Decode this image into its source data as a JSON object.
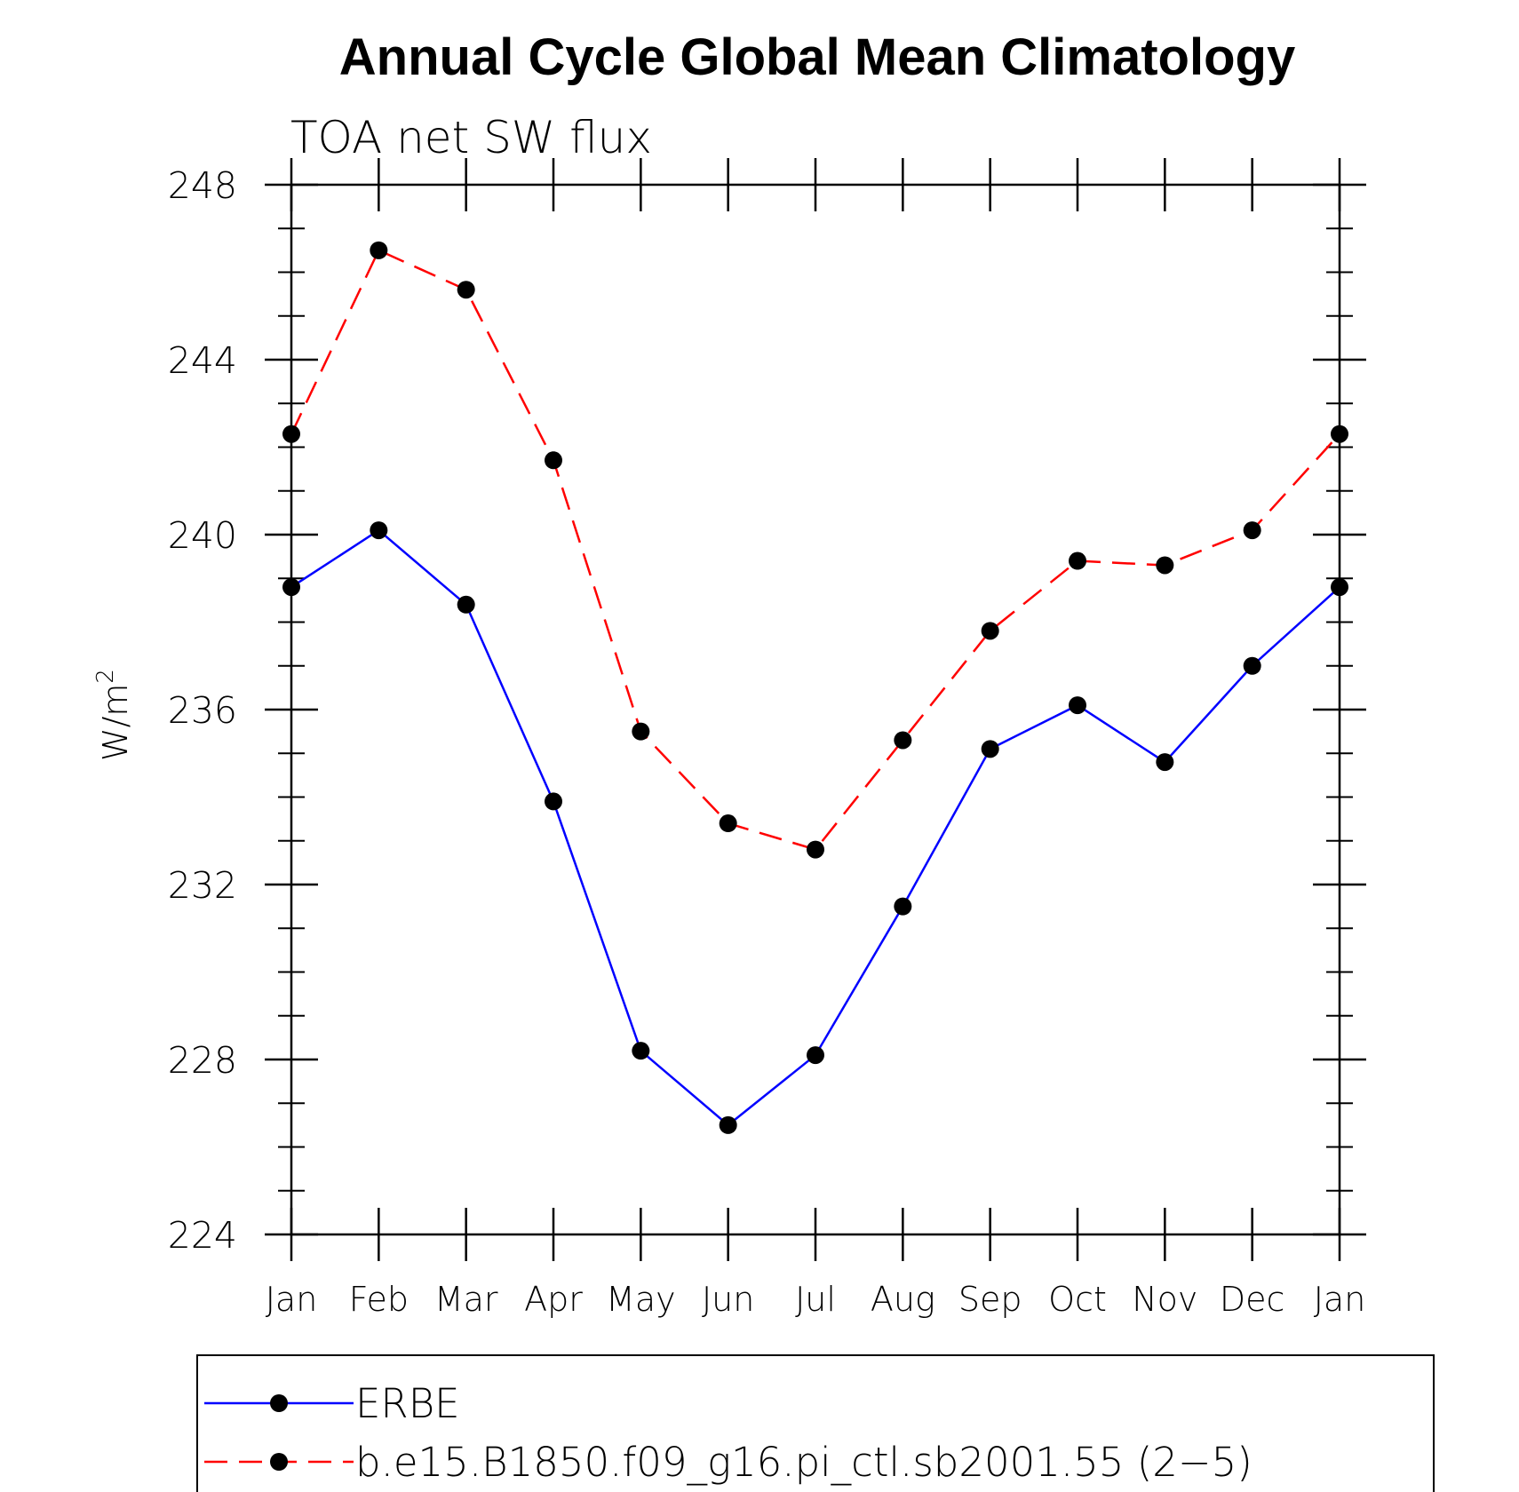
{
  "chart_data": {
    "type": "line",
    "title": "Annual Cycle Global Mean Climatology",
    "subtitle": "TOA net SW flux",
    "ylabel_base": "W/m",
    "ylabel_sup": "2",
    "xlabel": "",
    "categories": [
      "Jan",
      "Feb",
      "Mar",
      "Apr",
      "May",
      "Jun",
      "Jul",
      "Aug",
      "Sep",
      "Oct",
      "Nov",
      "Dec",
      "Jan"
    ],
    "ylim": [
      224,
      248
    ],
    "yticks": [
      224,
      228,
      232,
      236,
      240,
      244,
      248
    ],
    "y_minor_step": 1,
    "legend_position": "bottom",
    "series": [
      {
        "name": "ERBE",
        "color": "#0000ff",
        "dash": "solid",
        "values": [
          238.8,
          240.1,
          238.4,
          233.9,
          228.2,
          226.5,
          228.1,
          231.5,
          235.1,
          236.1,
          234.8,
          237.0,
          238.8
        ]
      },
      {
        "name": "b.e15.B1850.f09_g16.pi_ctl.sb2001.55 (2−5)",
        "color": "#ff0000",
        "dash": "dashed",
        "values": [
          242.3,
          246.5,
          245.6,
          241.7,
          235.5,
          233.4,
          232.8,
          235.3,
          237.8,
          239.4,
          239.3,
          240.1,
          242.3
        ]
      }
    ],
    "marker_color": "#000000",
    "axis_color": "#000000"
  }
}
